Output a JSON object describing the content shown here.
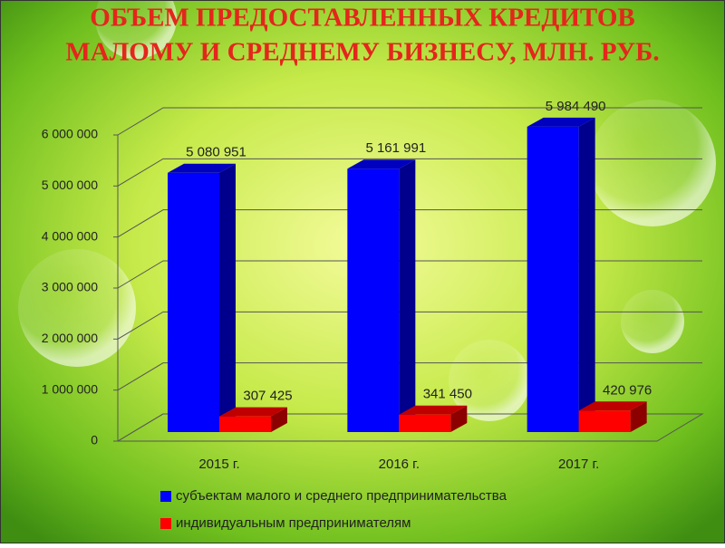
{
  "chart_data": {
    "type": "bar3d",
    "title": [
      "ОБЪЕМ ПРЕДОСТАВЛЕННЫХ КРЕДИТОВ",
      "МАЛОМУ И СРЕДНЕМУ БИЗНЕСУ, МЛН. РУБ."
    ],
    "categories": [
      "2015 г.",
      "2016 г.",
      "2017 г."
    ],
    "series": [
      {
        "name": "субъектам малого и среднего предпринимательства",
        "color": "#0000ff",
        "values": [
          5080951,
          5161991,
          5984490
        ],
        "value_labels": [
          "5 080 951",
          "5 161 991",
          "5 984 490"
        ]
      },
      {
        "name": "индивидуальным предпринимателям",
        "color": "#ff0000",
        "values": [
          307425,
          341450,
          420976
        ],
        "value_labels": [
          "307 425",
          "341 450",
          "420 976"
        ]
      }
    ],
    "ylim": [
      0,
      6000000
    ],
    "yticks": [
      0,
      {
        "value": 1000000,
        "label": "1 000 000"
      },
      {
        "value": 2000000,
        "label": "2 000 000"
      },
      {
        "value": 3000000,
        "label": "3 000 000"
      },
      {
        "value": 4000000,
        "label": "4 000 000"
      },
      {
        "value": 5000000,
        "label": "5 000 000"
      },
      {
        "value": 6000000,
        "label": "6 000 000"
      }
    ],
    "grid": true,
    "legend": "bottom"
  }
}
